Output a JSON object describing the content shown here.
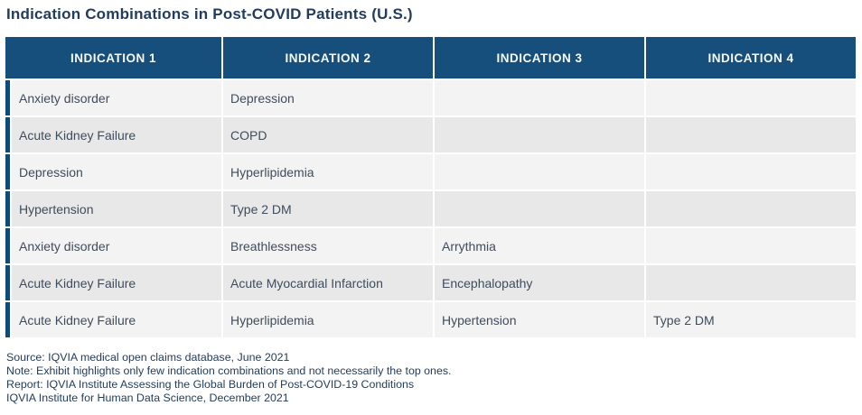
{
  "title": "Indication Combinations in Post-COVID Patients (U.S.)",
  "chart_data": {
    "type": "table",
    "title": "Indication Combinations in Post-COVID Patients (U.S.)",
    "columns": [
      "INDICATION 1",
      "INDICATION 2",
      "INDICATION 3",
      "INDICATION 4"
    ],
    "rows": [
      [
        "Anxiety disorder",
        "Depression",
        "",
        ""
      ],
      [
        "Acute Kidney Failure",
        "COPD",
        "",
        ""
      ],
      [
        "Depression",
        "Hyperlipidemia",
        "",
        ""
      ],
      [
        "Hypertension",
        "Type 2 DM",
        "",
        ""
      ],
      [
        "Anxiety disorder",
        "Breathlessness",
        "Arrythmia",
        ""
      ],
      [
        "Acute Kidney Failure",
        "Acute Myocardial Infarction",
        "Encephalopathy",
        ""
      ],
      [
        "Acute Kidney Failure",
        "Hyperlipidemia",
        "Hypertension",
        "Type 2 DM"
      ]
    ],
    "layout": {
      "header_position": "top",
      "left_accent_strip": true,
      "row_striping": "odd-light-even-dark"
    }
  },
  "footer": {
    "lines": [
      "Source: IQVIA medical open claims database, June 2021",
      "Note: Exhibit highlights only few indication combinations and not necessarily the top ones.",
      "Report: IQVIA Institute Assessing the Global Burden of Post-COVID-19 Conditions",
      "IQVIA Institute for Human Data Science, December 2021"
    ]
  },
  "colors": {
    "header_bg": "#164f7c",
    "accent_strip": "#104a7a",
    "row_light": "#f3f3f4",
    "row_dark": "#e8e8e9",
    "title_text": "#223c5f",
    "cell_text": "#3f4c5c",
    "footer_text": "#243d5c",
    "header_text": "#f7fafc",
    "background": "#ffffff"
  }
}
